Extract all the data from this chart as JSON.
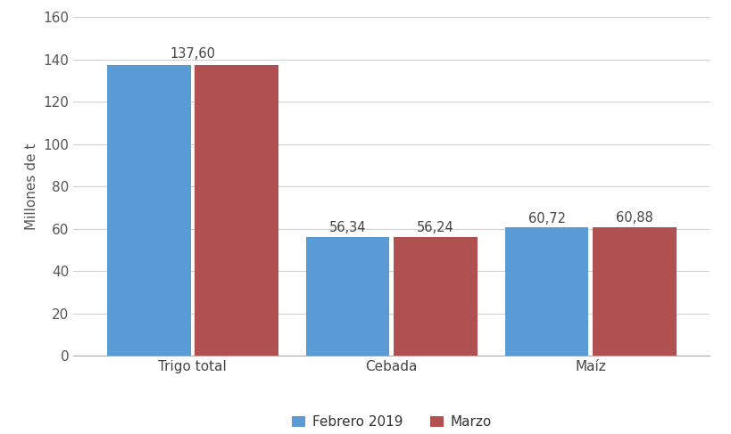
{
  "categories": [
    "Trigo total",
    "Cebada",
    "Maíz"
  ],
  "febrero_values": [
    137.6,
    56.34,
    60.72
  ],
  "marzo_values": [
    137.6,
    56.24,
    60.88
  ],
  "febrero_label": "Febrero 2019",
  "marzo_label": "Marzo",
  "febrero_color": "#5b9bd5",
  "marzo_color": "#b05050",
  "ylabel": "Millones de t",
  "ylim": [
    0,
    160
  ],
  "yticks": [
    0,
    20,
    40,
    60,
    80,
    100,
    120,
    140,
    160
  ],
  "bar_width": 0.42,
  "bar_gap": 0.02,
  "annotation_fontsize": 10.5,
  "label_fontsize": 11,
  "tick_fontsize": 11,
  "legend_fontsize": 11,
  "background_color": "#ffffff",
  "grid_color": "#d0d0d0",
  "febrero_annotations": [
    "137,60",
    "56,34",
    "60,72"
  ],
  "marzo_annotations": [
    "",
    "56,24",
    "60,88"
  ],
  "group_positions": [
    0.0,
    1.0,
    2.0
  ],
  "xlim_left": -0.6,
  "xlim_right": 2.6
}
